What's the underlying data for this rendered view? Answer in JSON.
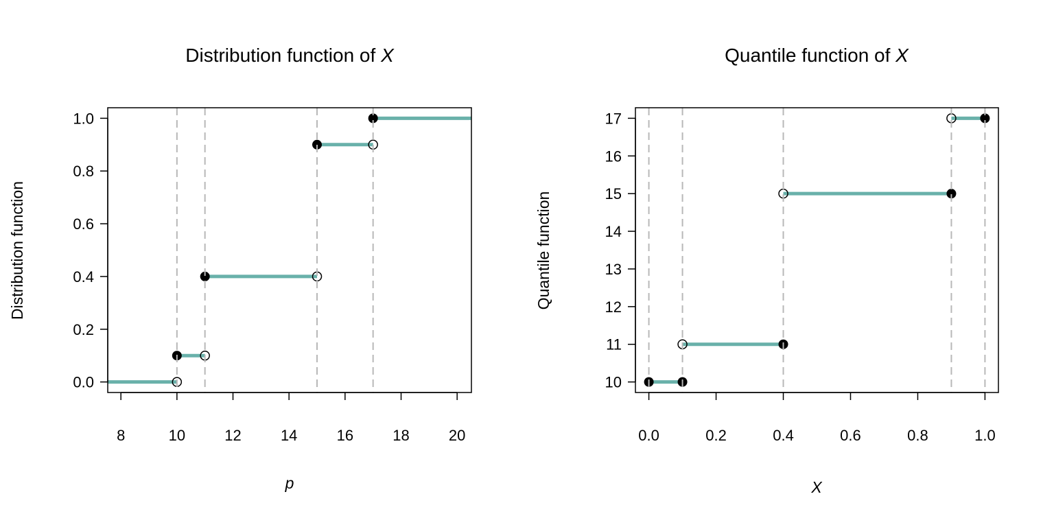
{
  "colors": {
    "segment": "#69b1aa",
    "point": "#000000",
    "vline": "#b8b8b8"
  },
  "chart_data": [
    {
      "type": "line",
      "title": "Distribution function of ",
      "title_italic": "X",
      "xlabel": "p",
      "ylabel": "Distribution function",
      "xlim": [
        7.53,
        20.51
      ],
      "ylim": [
        -0.04,
        1.04
      ],
      "xticks": [
        8,
        10,
        12,
        14,
        16,
        18,
        20
      ],
      "xtick_labels": [
        "8",
        "10",
        "12",
        "14",
        "16",
        "18",
        "20"
      ],
      "yticks": [
        0,
        0.2,
        0.4,
        0.6,
        0.8,
        1.0
      ],
      "ytick_labels": [
        "0.0",
        "0.2",
        "0.4",
        "0.6",
        "0.8",
        "1.0"
      ],
      "segments": [
        [
          7.53,
          10,
          0
        ],
        [
          10,
          11,
          0.1
        ],
        [
          11,
          15,
          0.4
        ],
        [
          15,
          17,
          0.9
        ],
        [
          17,
          20.51,
          1.0
        ]
      ],
      "closed_points": [
        [
          10,
          0.1
        ],
        [
          11,
          0.4
        ],
        [
          15,
          0.9
        ],
        [
          17,
          1.0
        ]
      ],
      "open_points": [
        [
          10,
          0
        ],
        [
          11,
          0.1
        ],
        [
          15,
          0.4
        ],
        [
          17,
          0.9
        ]
      ],
      "vlines": [
        10,
        11,
        15,
        17
      ],
      "grid": false
    },
    {
      "type": "line",
      "title": "Quantile function of ",
      "title_italic": "X",
      "xlabel": "X",
      "ylabel": "Quantile function",
      "xlim": [
        -0.04,
        1.04
      ],
      "ylim": [
        9.72,
        17.28
      ],
      "xticks": [
        0,
        0.2,
        0.4,
        0.6,
        0.8,
        1.0
      ],
      "xtick_labels": [
        "0.0",
        "0.2",
        "0.4",
        "0.6",
        "0.8",
        "1.0"
      ],
      "yticks": [
        10,
        11,
        12,
        13,
        14,
        15,
        16,
        17
      ],
      "ytick_labels": [
        "10",
        "11",
        "12",
        "13",
        "14",
        "15",
        "16",
        "17"
      ],
      "segments": [
        [
          0,
          0.1,
          10
        ],
        [
          0.1,
          0.4,
          11
        ],
        [
          0.4,
          0.9,
          15
        ],
        [
          0.9,
          1.0,
          17
        ]
      ],
      "closed_points": [
        [
          0,
          10
        ],
        [
          0.1,
          10
        ],
        [
          0.4,
          11
        ],
        [
          0.9,
          15
        ],
        [
          1.0,
          17
        ]
      ],
      "open_points": [
        [
          0.1,
          11
        ],
        [
          0.4,
          15
        ],
        [
          0.9,
          17
        ]
      ],
      "vlines": [
        0,
        0.1,
        0.4,
        0.9,
        1.0
      ],
      "grid": false
    }
  ]
}
